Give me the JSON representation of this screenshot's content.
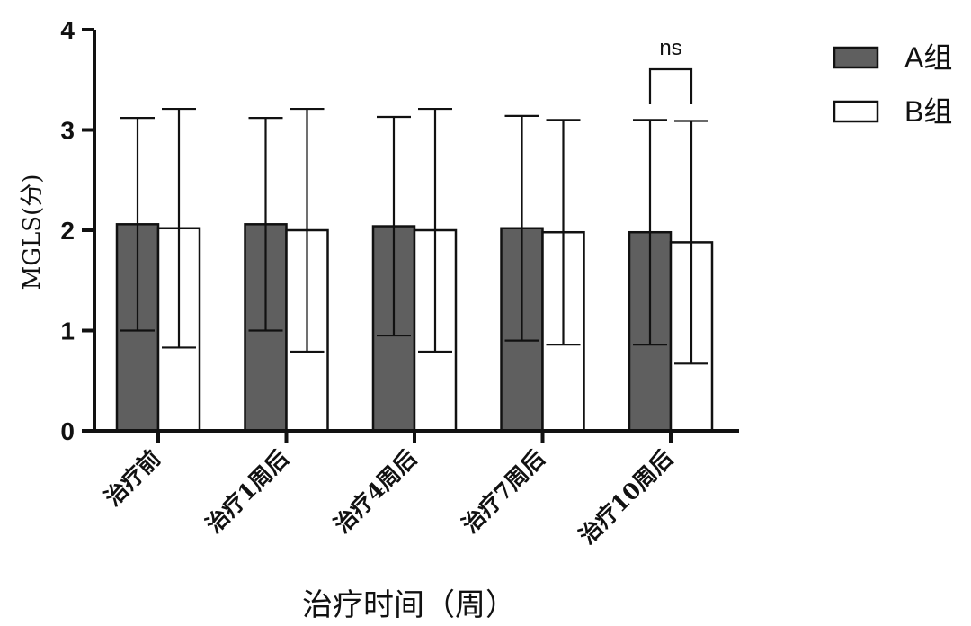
{
  "chart_data": {
    "type": "bar",
    "title": "",
    "xlabel": "治疗时间（周）",
    "ylabel": "MGLS(分)",
    "ylim": [
      0,
      4
    ],
    "yticks": [
      0,
      1,
      2,
      3,
      4
    ],
    "categories": [
      "治疗前",
      "治疗1周后",
      "治疗4周后",
      "治疗7周后",
      "治疗10周后"
    ],
    "series": [
      {
        "name": "A组",
        "color": "#5f5f5f",
        "values": [
          2.06,
          2.06,
          2.04,
          2.02,
          1.98
        ],
        "error_upper": [
          3.12,
          3.12,
          3.13,
          3.14,
          3.1
        ],
        "error_lower": [
          1.0,
          1.0,
          0.95,
          0.9,
          0.86
        ]
      },
      {
        "name": "B组",
        "color": "#ffffff",
        "values": [
          2.02,
          2.0,
          2.0,
          1.98,
          1.88
        ],
        "error_upper": [
          3.21,
          3.21,
          3.21,
          3.1,
          3.09
        ],
        "error_lower": [
          0.83,
          0.79,
          0.79,
          0.86,
          0.67
        ]
      }
    ],
    "annotations": [
      {
        "text": "ns",
        "category": "治疗10周后"
      }
    ],
    "legend": "top-right",
    "grid": false
  }
}
